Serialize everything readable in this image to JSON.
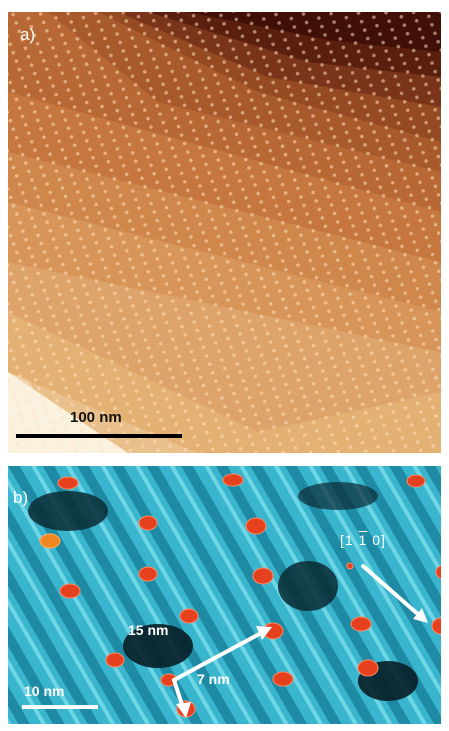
{
  "panel_a": {
    "label": "a)",
    "scale_bar": "100 nm",
    "colors": {
      "dark": "#3b0a0a",
      "mid": "#b3652b",
      "light": "#f3e2c4"
    }
  },
  "panel_b": {
    "label": "b)",
    "scale_bar": "10 nm",
    "distance_1": "15 nm",
    "distance_2": "7 nm",
    "direction_parts": [
      "[1 ",
      "1",
      " 0]"
    ],
    "colors": {
      "background": "#38b6cf",
      "dots": "#e8411f"
    }
  }
}
